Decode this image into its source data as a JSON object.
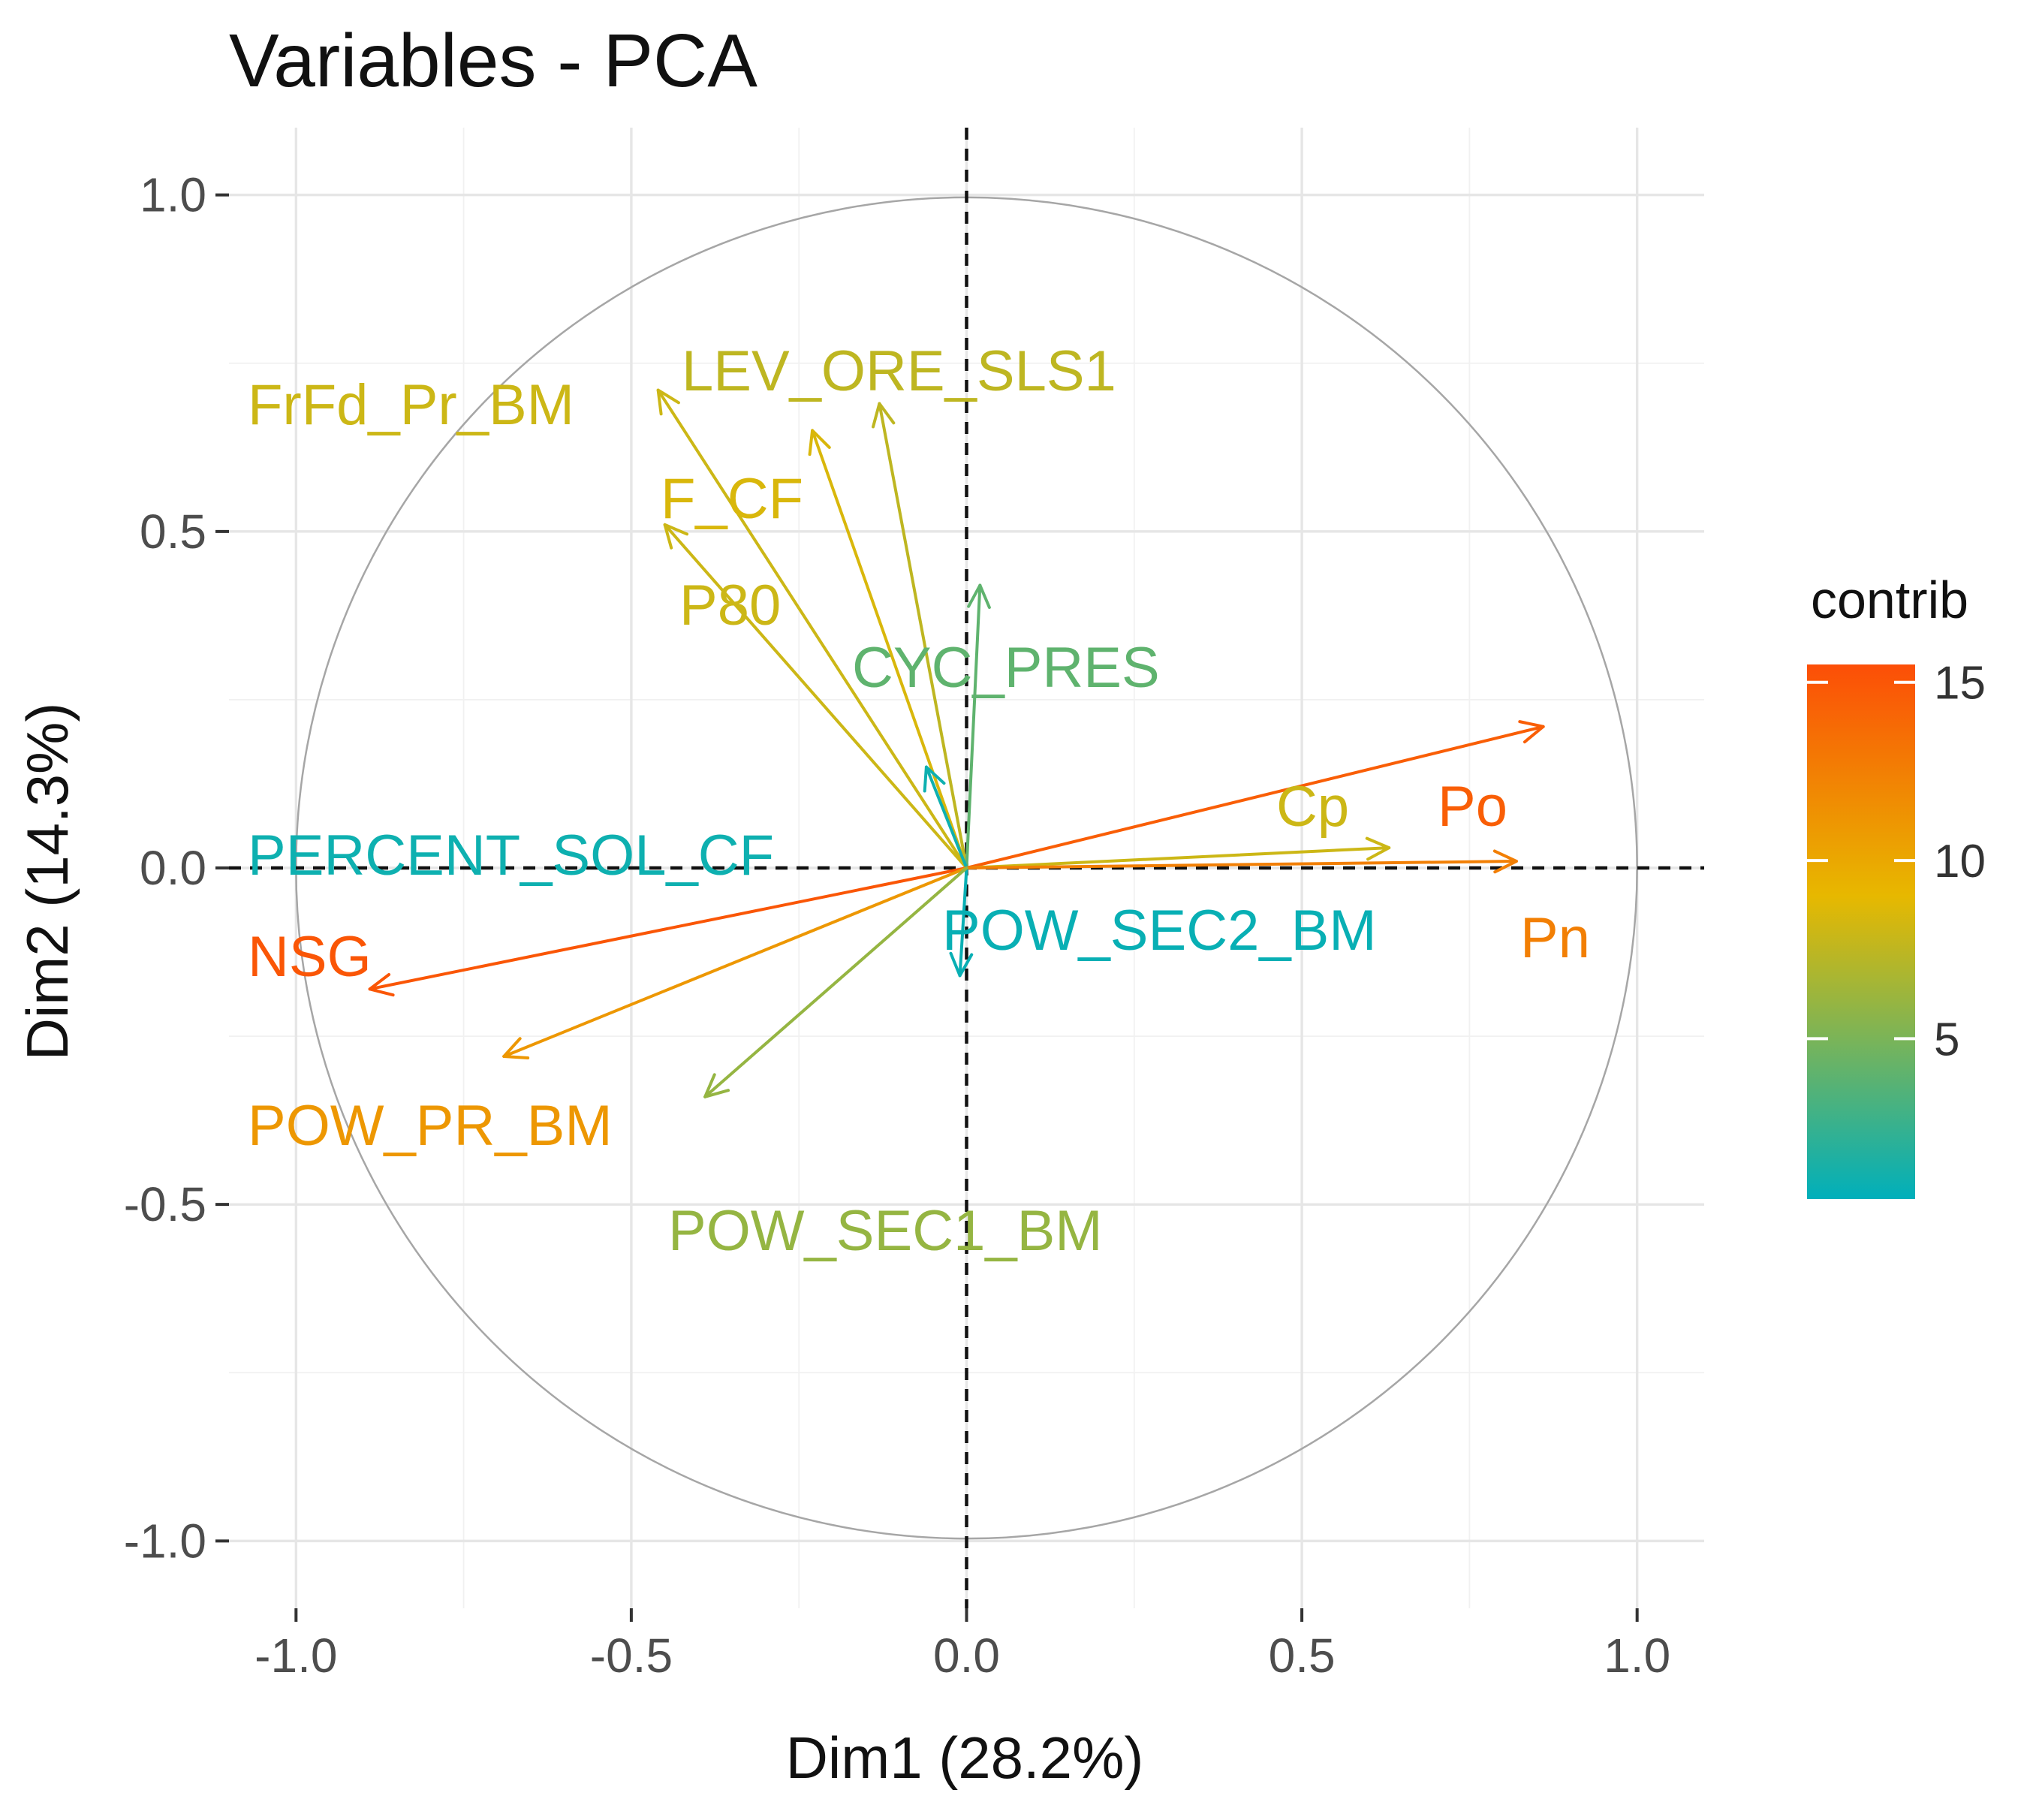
{
  "chart_data": {
    "type": "scatter",
    "subtype": "pca-variable-correlation-circle",
    "title": "Variables - PCA",
    "xlabel": "Dim1 (28.2%)",
    "ylabel": "Dim2 (14.3%)",
    "xlim": [
      -1.1,
      1.1
    ],
    "ylim": [
      -1.1,
      1.1
    ],
    "x_ticks": [
      -1.0,
      -0.5,
      0.0,
      0.5,
      1.0
    ],
    "x_tick_labels": [
      "-1.0",
      "-0.5",
      "0.0",
      "0.5",
      "1.0"
    ],
    "y_ticks": [
      -1.0,
      -0.5,
      0.0,
      0.5,
      1.0
    ],
    "y_tick_labels": [
      "-1.0",
      "-0.5",
      "0.0",
      "0.5",
      "1.0"
    ],
    "grid": true,
    "unit_circle": true,
    "reference_lines": {
      "x": 0,
      "y": 0,
      "style": "dashed"
    },
    "legend": {
      "title": "contrib",
      "position": "right",
      "range": [
        0.5,
        15.5
      ],
      "ticks": [
        5,
        10,
        15
      ],
      "tick_labels": [
        "5",
        "10",
        "15"
      ],
      "colors": {
        "low": "#00AFBB",
        "mid": "#E7B800",
        "high": "#FC4E07",
        "midpoint": 9
      }
    },
    "variables": [
      {
        "name": "FrFd_Pr_BM",
        "x": -0.46,
        "y": 0.71,
        "contrib": 8.0
      },
      {
        "name": "LEV_ORE_SLS1",
        "x": -0.13,
        "y": 0.69,
        "contrib": 7.5
      },
      {
        "name": "F_CF",
        "x": -0.23,
        "y": 0.65,
        "contrib": 8.5
      },
      {
        "name": "P80",
        "x": -0.45,
        "y": 0.51,
        "contrib": 8.0
      },
      {
        "name": "CYC_PRES",
        "x": 0.02,
        "y": 0.42,
        "contrib": 4.0
      },
      {
        "name": "PERCENT_SOL_CF",
        "x": -0.06,
        "y": 0.15,
        "contrib": 1.0
      },
      {
        "name": "Po",
        "x": 0.86,
        "y": 0.21,
        "contrib": 14.5
      },
      {
        "name": "Cp",
        "x": 0.63,
        "y": 0.03,
        "contrib": 8.0
      },
      {
        "name": "Pn",
        "x": 0.82,
        "y": 0.01,
        "contrib": 12.5
      },
      {
        "name": "POW_SEC2_BM",
        "x": -0.01,
        "y": -0.16,
        "contrib": 0.8
      },
      {
        "name": "NSG",
        "x": -0.89,
        "y": -0.18,
        "contrib": 15.0
      },
      {
        "name": "POW_PR_BM",
        "x": -0.69,
        "y": -0.28,
        "contrib": 11.0
      },
      {
        "name": "POW_SEC1_BM",
        "x": -0.39,
        "y": -0.34,
        "contrib": 6.0
      }
    ]
  }
}
